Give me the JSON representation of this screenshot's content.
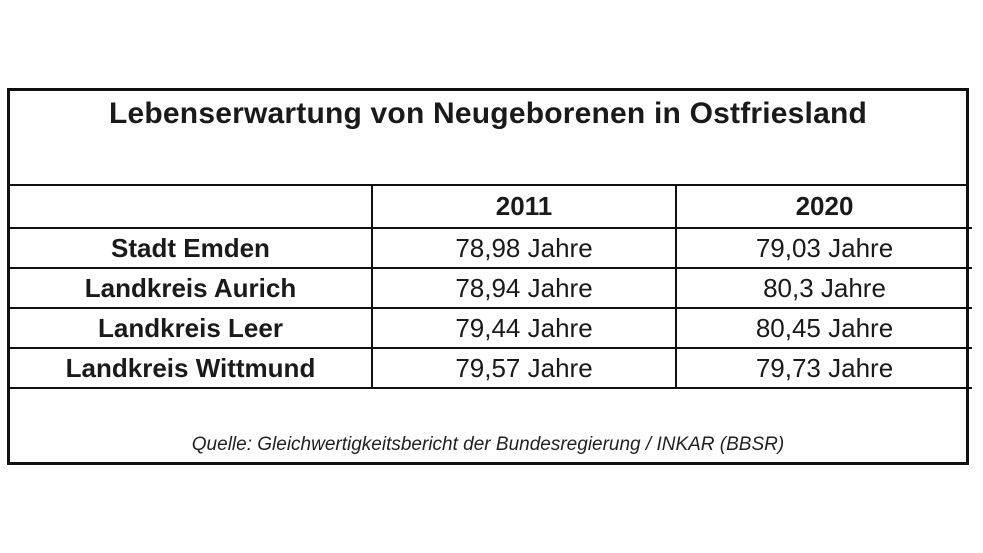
{
  "title": "Lebenserwartung von Neugeborenen in Ostfriesland",
  "columns": [
    "",
    "2011",
    "2020"
  ],
  "rows": [
    {
      "label": "Stadt Emden",
      "v2011": "78,98 Jahre",
      "v2020": "79,03 Jahre"
    },
    {
      "label": "Landkreis Aurich",
      "v2011": "78,94 Jahre",
      "v2020": "80,3 Jahre"
    },
    {
      "label": "Landkreis Leer",
      "v2011": "79,44 Jahre",
      "v2020": "80,45 Jahre"
    },
    {
      "label": "Landkreis Wittmund",
      "v2011": "79,57 Jahre",
      "v2020": "79,73 Jahre"
    }
  ],
  "source": "Quelle: Gleichwertigkeitsbericht der Bundesregierung / INKAR (BBSR)"
}
